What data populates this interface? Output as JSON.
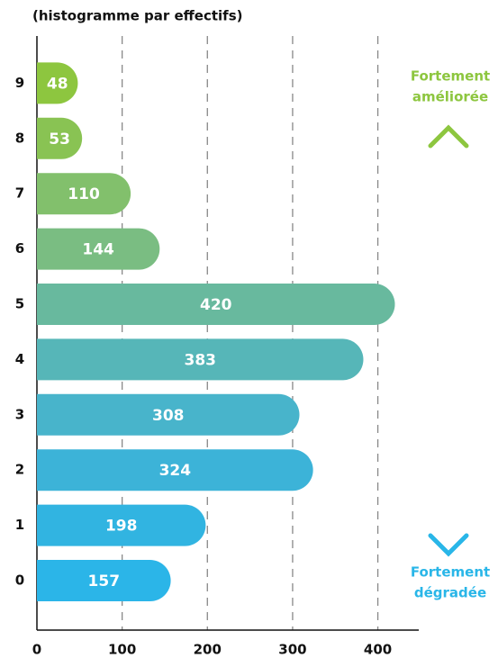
{
  "chart_data": {
    "type": "barh",
    "title": "(histogramme par effectifs)",
    "categories": [
      "0",
      "1",
      "2",
      "3",
      "4",
      "5",
      "6",
      "7",
      "8",
      "9"
    ],
    "values": [
      157,
      198,
      324,
      308,
      383,
      420,
      144,
      110,
      53,
      48
    ],
    "colors": [
      "#2bb5e8",
      "#31b4e1",
      "#3cb3d8",
      "#48b4cb",
      "#56b6b8",
      "#68b99e",
      "#7abd82",
      "#82c06c",
      "#89c353",
      "#8dc63f"
    ],
    "xlim": [
      0,
      448
    ],
    "xticks": [
      0,
      100,
      200,
      300,
      400
    ],
    "grid": true,
    "annotations": [
      {
        "lines": [
          "Fortement",
          "améliorée"
        ],
        "color": "#8dc63f"
      },
      {
        "lines": [
          "Fortement",
          "dégradée"
        ],
        "color": "#29b6e8"
      }
    ]
  }
}
